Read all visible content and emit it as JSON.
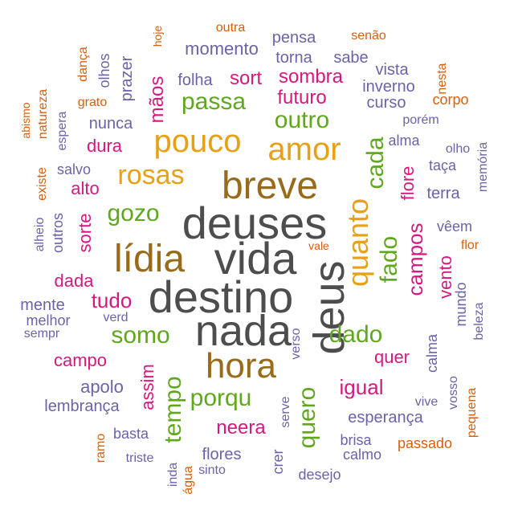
{
  "palette": {
    "grey": "#4d4d4d",
    "brown": "#986b1b",
    "gold": "#e6a117",
    "green": "#5fa81d",
    "magenta": "#d6197e",
    "purple": "#6b63aa",
    "orange": "#d95f0e"
  },
  "words": [
    {
      "text": "deuses",
      "color": "grey"
    },
    {
      "text": "vida",
      "color": "grey"
    },
    {
      "text": "destino",
      "color": "grey"
    },
    {
      "text": "nada",
      "color": "grey"
    },
    {
      "text": "deus",
      "color": "grey"
    },
    {
      "text": "breve",
      "color": "brown"
    },
    {
      "text": "lídia",
      "color": "brown"
    },
    {
      "text": "hora",
      "color": "brown"
    },
    {
      "text": "pouco",
      "color": "gold"
    },
    {
      "text": "amor",
      "color": "gold"
    },
    {
      "text": "rosas",
      "color": "gold"
    },
    {
      "text": "quanto",
      "color": "gold"
    },
    {
      "text": "passa",
      "color": "green"
    },
    {
      "text": "outro",
      "color": "green"
    },
    {
      "text": "gozo",
      "color": "green"
    },
    {
      "text": "cada",
      "color": "green"
    },
    {
      "text": "fado",
      "color": "green"
    },
    {
      "text": "somo",
      "color": "green"
    },
    {
      "text": "dado",
      "color": "green"
    },
    {
      "text": "porqu",
      "color": "green"
    },
    {
      "text": "tempo",
      "color": "green"
    },
    {
      "text": "quero",
      "color": "green"
    },
    {
      "text": "futuro",
      "color": "magenta"
    },
    {
      "text": "sort",
      "color": "magenta"
    },
    {
      "text": "sombra",
      "color": "magenta"
    },
    {
      "text": "mãos",
      "color": "magenta"
    },
    {
      "text": "dura",
      "color": "magenta"
    },
    {
      "text": "alto",
      "color": "magenta"
    },
    {
      "text": "sorte",
      "color": "magenta"
    },
    {
      "text": "flore",
      "color": "magenta"
    },
    {
      "text": "campos",
      "color": "magenta"
    },
    {
      "text": "vento",
      "color": "magenta"
    },
    {
      "text": "dada",
      "color": "magenta"
    },
    {
      "text": "tudo",
      "color": "magenta"
    },
    {
      "text": "quer",
      "color": "magenta"
    },
    {
      "text": "igual",
      "color": "magenta"
    },
    {
      "text": "campo",
      "color": "magenta"
    },
    {
      "text": "assim",
      "color": "magenta"
    },
    {
      "text": "neera",
      "color": "magenta"
    },
    {
      "text": "momento",
      "color": "purple"
    },
    {
      "text": "pensa",
      "color": "purple"
    },
    {
      "text": "torna",
      "color": "purple"
    },
    {
      "text": "sabe",
      "color": "purple"
    },
    {
      "text": "vista",
      "color": "purple"
    },
    {
      "text": "folha",
      "color": "purple"
    },
    {
      "text": "inverno",
      "color": "purple"
    },
    {
      "text": "curso",
      "color": "purple"
    },
    {
      "text": "prazer",
      "color": "purple"
    },
    {
      "text": "olhos",
      "color": "purple"
    },
    {
      "text": "nunca",
      "color": "purple"
    },
    {
      "text": "espera",
      "color": "purple"
    },
    {
      "text": "porém",
      "color": "purple"
    },
    {
      "text": "alma",
      "color": "purple"
    },
    {
      "text": "olho",
      "color": "purple"
    },
    {
      "text": "taça",
      "color": "purple"
    },
    {
      "text": "memória",
      "color": "purple"
    },
    {
      "text": "salvo",
      "color": "purple"
    },
    {
      "text": "terra",
      "color": "purple"
    },
    {
      "text": "vêem",
      "color": "purple"
    },
    {
      "text": "alheio",
      "color": "purple"
    },
    {
      "text": "outros",
      "color": "purple"
    },
    {
      "text": "mente",
      "color": "purple"
    },
    {
      "text": "melhor",
      "color": "purple"
    },
    {
      "text": "sempr",
      "color": "purple"
    },
    {
      "text": "verd",
      "color": "purple"
    },
    {
      "text": "verso",
      "color": "purple"
    },
    {
      "text": "mundo",
      "color": "purple"
    },
    {
      "text": "beleza",
      "color": "purple"
    },
    {
      "text": "calma",
      "color": "purple"
    },
    {
      "text": "apolo",
      "color": "purple"
    },
    {
      "text": "lembrança",
      "color": "purple"
    },
    {
      "text": "serve",
      "color": "purple"
    },
    {
      "text": "esperança",
      "color": "purple"
    },
    {
      "text": "vive",
      "color": "purple"
    },
    {
      "text": "vosso",
      "color": "purple"
    },
    {
      "text": "basta",
      "color": "purple"
    },
    {
      "text": "flores",
      "color": "purple"
    },
    {
      "text": "brisa",
      "color": "purple"
    },
    {
      "text": "calmo",
      "color": "purple"
    },
    {
      "text": "triste",
      "color": "purple"
    },
    {
      "text": "sinto",
      "color": "purple"
    },
    {
      "text": "crer",
      "color": "purple"
    },
    {
      "text": "desejo",
      "color": "purple"
    },
    {
      "text": "inda",
      "color": "purple"
    },
    {
      "text": "outra",
      "color": "orange"
    },
    {
      "text": "senão",
      "color": "orange"
    },
    {
      "text": "hoje",
      "color": "orange"
    },
    {
      "text": "dança",
      "color": "orange"
    },
    {
      "text": "abismo",
      "color": "orange"
    },
    {
      "text": "natureza",
      "color": "orange"
    },
    {
      "text": "grato",
      "color": "orange"
    },
    {
      "text": "nesta",
      "color": "orange"
    },
    {
      "text": "corpo",
      "color": "orange"
    },
    {
      "text": "existe",
      "color": "orange"
    },
    {
      "text": "vale",
      "color": "orange"
    },
    {
      "text": "flor",
      "color": "orange"
    },
    {
      "text": "pequena",
      "color": "orange"
    },
    {
      "text": "passado",
      "color": "orange"
    },
    {
      "text": "ramo",
      "color": "orange"
    },
    {
      "text": "água",
      "color": "orange"
    }
  ]
}
